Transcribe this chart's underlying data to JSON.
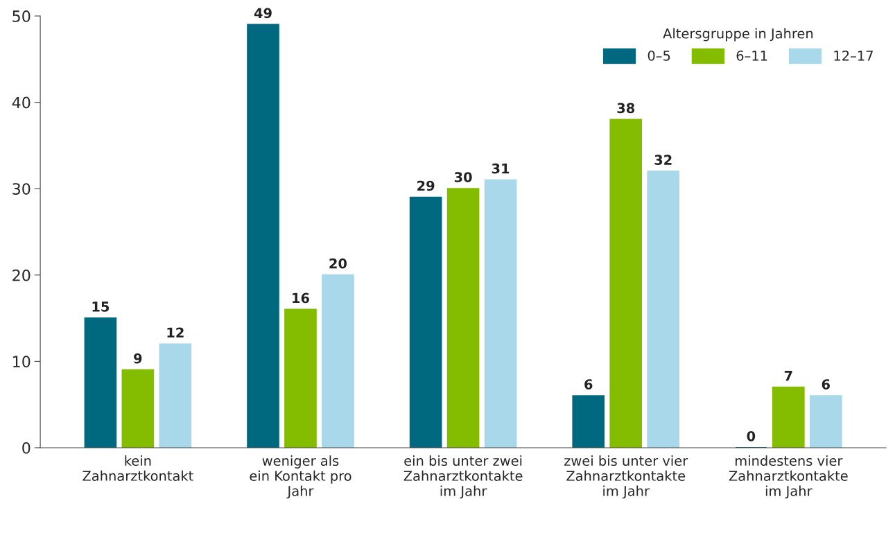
{
  "chart_data": {
    "type": "bar",
    "categories": [
      "kein\nZahnarztkontakt",
      "weniger als\nein Kontakt pro\nJahr",
      "ein bis unter zwei\nZahnarztkontakte\nim Jahr",
      "zwei bis unter vier\nZahnarztkontakte\nim Jahr",
      "mindestens vier\nZahnarztkontakte\nim Jahr"
    ],
    "series": [
      {
        "name": "0–5",
        "color": "#00687f",
        "values": [
          15,
          49,
          29,
          6,
          0
        ]
      },
      {
        "name": "6–11",
        "color": "#84bd00",
        "values": [
          9,
          16,
          30,
          38,
          7
        ]
      },
      {
        "name": "12–17",
        "color": "#a8d8ea",
        "values": [
          12,
          20,
          31,
          32,
          6
        ]
      }
    ],
    "legend_title": "Altersgruppe in Jahren",
    "legend": "top right",
    "ylim": [
      0,
      50
    ],
    "yticks": [
      0,
      10,
      20,
      30,
      40,
      50
    ],
    "grid": false,
    "data_labels": true
  }
}
